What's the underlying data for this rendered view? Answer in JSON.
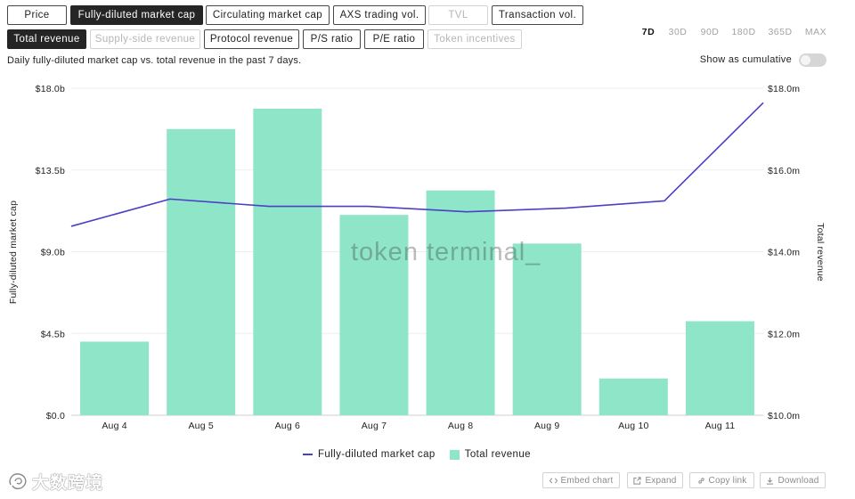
{
  "metric_selector": {
    "row1": [
      {
        "label": "Price",
        "selected": false,
        "disabled": false
      },
      {
        "label": "Fully-diluted market cap",
        "selected": true,
        "disabled": false
      },
      {
        "label": "Circulating market cap",
        "selected": false,
        "disabled": false
      },
      {
        "label": "AXS trading vol.",
        "selected": false,
        "disabled": false
      },
      {
        "label": "TVL",
        "selected": false,
        "disabled": true
      },
      {
        "label": "Transaction vol.",
        "selected": false,
        "disabled": false
      }
    ],
    "row2": [
      {
        "label": "Total revenue",
        "selected": true,
        "disabled": false
      },
      {
        "label": "Supply-side revenue",
        "selected": false,
        "disabled": true
      },
      {
        "label": "Protocol revenue",
        "selected": false,
        "disabled": false
      },
      {
        "label": "P/S ratio",
        "selected": false,
        "disabled": false
      },
      {
        "label": "P/E ratio",
        "selected": false,
        "disabled": false
      },
      {
        "label": "Token incentives",
        "selected": false,
        "disabled": true
      }
    ]
  },
  "time_range": [
    {
      "label": "7D",
      "selected": true
    },
    {
      "label": "30D",
      "selected": false
    },
    {
      "label": "90D",
      "selected": false
    },
    {
      "label": "180D",
      "selected": false
    },
    {
      "label": "365D",
      "selected": false
    },
    {
      "label": "MAX",
      "selected": false
    }
  ],
  "description": "Daily fully-diluted market cap vs. total revenue in the past 7 days.",
  "cumulative_toggle": {
    "label": "Show as cumulative",
    "on": false
  },
  "chart_watermark": "token terminal_",
  "chart_data": {
    "type": "bar",
    "categories": [
      "Aug 4",
      "Aug 5",
      "Aug 6",
      "Aug 7",
      "Aug 8",
      "Aug 9",
      "Aug 10",
      "Aug 11"
    ],
    "series": [
      {
        "name": "Fully-diluted market cap",
        "type": "line",
        "axis": "left",
        "color": "#4b3fc6",
        "values": [
          10.4,
          11.9,
          11.5,
          11.5,
          11.2,
          11.4,
          11.8,
          17.2
        ]
      },
      {
        "name": "Total revenue",
        "type": "bar",
        "axis": "right",
        "color": "#8ee5c8",
        "values": [
          11.8,
          17.0,
          17.5,
          14.9,
          15.5,
          14.2,
          10.9,
          12.3
        ]
      }
    ],
    "y_left": {
      "label": "Fully-diluted market cap",
      "ylim": [
        0,
        18
      ],
      "ticks": [
        0,
        4.5,
        9,
        13.5,
        18
      ],
      "tick_labels": [
        "$0.0",
        "$4.5b",
        "$9.0b",
        "$13.5b",
        "$18.0b"
      ]
    },
    "y_right": {
      "label": "Total revenue",
      "ylim": [
        10,
        18
      ],
      "ticks": [
        10,
        12,
        14,
        16,
        18
      ],
      "tick_labels": [
        "$10.0m",
        "$12.0m",
        "$14.0m",
        "$16.0m",
        "$18.0m"
      ]
    },
    "xlabel": "",
    "grid": true,
    "legend": "bottom"
  },
  "actions": [
    {
      "label": "Embed chart",
      "icon": "code-icon"
    },
    {
      "label": "Expand",
      "icon": "expand-icon"
    },
    {
      "label": "Copy link",
      "icon": "link-icon"
    },
    {
      "label": "Download",
      "icon": "download-icon"
    }
  ],
  "corner_watermark": "大数跨境"
}
